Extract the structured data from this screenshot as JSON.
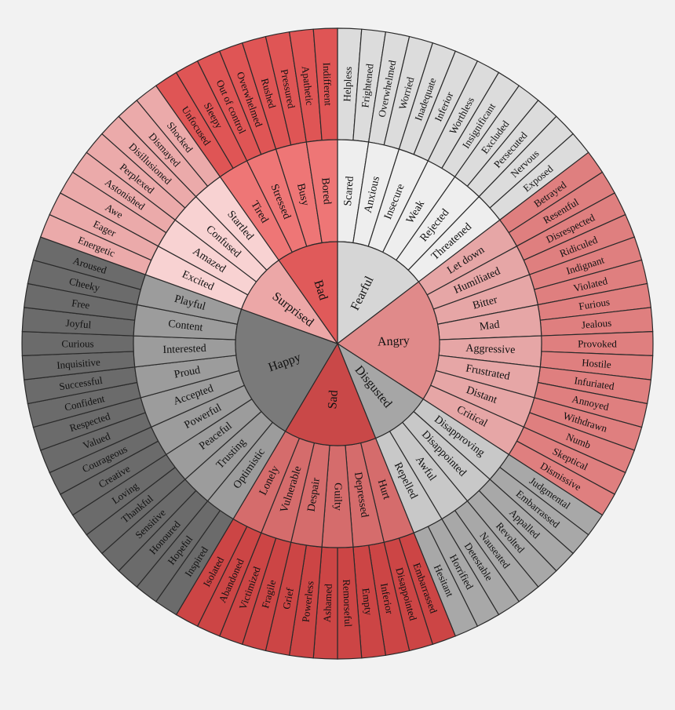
{
  "background_color": "#f2f2f2",
  "stroke_color": "#2a2a2a",
  "wheel": {
    "cores": [
      {
        "label": "Fearful",
        "core_color": "#d6d6d6",
        "mid_color": "#eeeeee",
        "outer_color": "#dcdcdc",
        "children": [
          {
            "label": "Scared",
            "leaves": [
              "Helpless",
              "Frightened"
            ]
          },
          {
            "label": "Anxious",
            "leaves": [
              "Overwhelmed",
              "Worried"
            ]
          },
          {
            "label": "Insecure",
            "leaves": [
              "Inadequate",
              "Inferior"
            ]
          },
          {
            "label": "Weak",
            "leaves": [
              "Worthless",
              "Insignificant"
            ]
          },
          {
            "label": "Rejected",
            "leaves": [
              "Excluded",
              "Persecuted"
            ]
          },
          {
            "label": "Threatened",
            "leaves": [
              "Nervous",
              "Exposed"
            ]
          }
        ]
      },
      {
        "label": "Angry",
        "core_color": "#e08a8a",
        "mid_color": "#e6a6a6",
        "outer_color": "#df7f7f",
        "children": [
          {
            "label": "Let down",
            "leaves": [
              "Betrayed",
              "Resentful"
            ]
          },
          {
            "label": "Humiliated",
            "leaves": [
              "Disrespected",
              "Ridiculed"
            ]
          },
          {
            "label": "Bitter",
            "leaves": [
              "Indignant",
              "Violated"
            ]
          },
          {
            "label": "Mad",
            "leaves": [
              "Furious",
              "Jealous"
            ]
          },
          {
            "label": "Aggressive",
            "leaves": [
              "Provoked",
              "Hostile"
            ]
          },
          {
            "label": "Frustrated",
            "leaves": [
              "Infuriated",
              "Annoyed"
            ]
          },
          {
            "label": "Distant",
            "leaves": [
              "Withdrawn",
              "Numb"
            ]
          },
          {
            "label": "Critical",
            "leaves": [
              "Skeptical",
              "Dismissive"
            ]
          }
        ]
      },
      {
        "label": "Disgusted",
        "core_color": "#a6a6a6",
        "mid_color": "#c8c8c8",
        "outer_color": "#a8a8a8",
        "children": [
          {
            "label": "Disapproving",
            "leaves": [
              "Judgmental",
              "Embarrassed"
            ]
          },
          {
            "label": "Disappointed",
            "leaves": [
              "Appalled",
              "Revolted"
            ]
          },
          {
            "label": "Awful",
            "leaves": [
              "Nauseated",
              "Detestable"
            ]
          },
          {
            "label": "Repelled",
            "leaves": [
              "Horrified",
              "Hesitant"
            ]
          }
        ]
      },
      {
        "label": "Sad",
        "core_color": "#c94848",
        "mid_color": "#d56c6c",
        "outer_color": "#cc4545",
        "children": [
          {
            "label": "Hurt",
            "leaves": [
              "Embarrassed",
              "Disappointed"
            ]
          },
          {
            "label": "Depressed",
            "leaves": [
              "Inferior",
              "Empty"
            ]
          },
          {
            "label": "Guilty",
            "leaves": [
              "Remorseful",
              "Ashamed"
            ]
          },
          {
            "label": "Despair",
            "leaves": [
              "Powerless",
              "Grief"
            ]
          },
          {
            "label": "Vulnerable",
            "leaves": [
              "Fragile",
              "Victimized"
            ]
          },
          {
            "label": "Lonely",
            "leaves": [
              "Abandoned",
              "Isolated"
            ]
          }
        ]
      },
      {
        "label": "Happy",
        "core_color": "#7a7a7a",
        "mid_color": "#9c9c9c",
        "outer_color": "#6b6b6b",
        "children": [
          {
            "label": "Optimistic",
            "leaves": [
              "Inspired",
              "Hopeful"
            ]
          },
          {
            "label": "Trusting",
            "leaves": [
              "Honoured",
              "Sensitive"
            ]
          },
          {
            "label": "Peaceful",
            "leaves": [
              "Thankful",
              "Loving"
            ]
          },
          {
            "label": "Powerful",
            "leaves": [
              "Creative",
              "Courageous"
            ]
          },
          {
            "label": "Accepted",
            "leaves": [
              "Valued",
              "Respected"
            ]
          },
          {
            "label": "Proud",
            "leaves": [
              "Confident",
              "Successful"
            ]
          },
          {
            "label": "Interested",
            "leaves": [
              "Inquisitive",
              "Curious"
            ]
          },
          {
            "label": "Content",
            "leaves": [
              "Joyful",
              "Free"
            ]
          },
          {
            "label": "Playful",
            "leaves": [
              "Cheeky",
              "Aroused"
            ]
          }
        ]
      },
      {
        "label": "Surprised",
        "core_color": "#eca7a7",
        "mid_color": "#f8d2d2",
        "outer_color": "#ebaaaa",
        "children": [
          {
            "label": "Excited",
            "leaves": [
              "Energetic",
              "Eager"
            ]
          },
          {
            "label": "Amazed",
            "leaves": [
              "Awe",
              "Astonished"
            ]
          },
          {
            "label": "Confused",
            "leaves": [
              "Perplexed",
              "Disillusioned"
            ]
          },
          {
            "label": "Startled",
            "leaves": [
              "Dismayed",
              "Shocked"
            ]
          }
        ]
      },
      {
        "label": "Bad",
        "core_color": "#e05a5a",
        "mid_color": "#ee7676",
        "outer_color": "#df5555",
        "children": [
          {
            "label": "Tired",
            "leaves": [
              "Unfocused",
              "Sleepy"
            ]
          },
          {
            "label": "Stressed",
            "leaves": [
              "Out of control",
              "Overwhelmed"
            ]
          },
          {
            "label": "Busy",
            "leaves": [
              "Rushed",
              "Pressured"
            ]
          },
          {
            "label": "Bored",
            "leaves": [
              "Apathetic",
              "Indifferent"
            ]
          }
        ]
      }
    ]
  }
}
